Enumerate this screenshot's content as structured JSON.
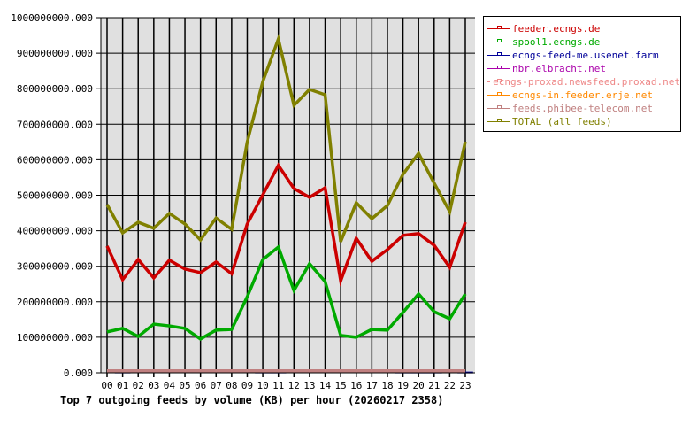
{
  "chart_data": {
    "type": "line",
    "title": "Top 7 outgoing feeds by volume (KB) per hour (20260217 2358)",
    "xlabel": "",
    "ylabel": "",
    "ylim": [
      0,
      1000000000
    ],
    "grid": true,
    "legend_position": "right",
    "y_ticks": [
      "0.000",
      "100000000.000",
      "200000000.000",
      "300000000.000",
      "400000000.000",
      "500000000.000",
      "600000000.000",
      "700000000.000",
      "800000000.000",
      "900000000.000",
      "1000000000.000"
    ],
    "categories": [
      "00",
      "01",
      "02",
      "03",
      "04",
      "05",
      "06",
      "07",
      "08",
      "09",
      "10",
      "11",
      "12",
      "13",
      "14",
      "15",
      "16",
      "17",
      "18",
      "19",
      "20",
      "21",
      "22",
      "23"
    ],
    "series": [
      {
        "name": "feeder.ecngs.de",
        "color": "#cc0000",
        "values": [
          357000000,
          262000000,
          319000000,
          267000000,
          317000000,
          292000000,
          282000000,
          312000000,
          279000000,
          419000000,
          501000000,
          584000000,
          519000000,
          494000000,
          521000000,
          259000000,
          379000000,
          314000000,
          347000000,
          387000000,
          392000000,
          359000000,
          297000000,
          424000000
        ]
      },
      {
        "name": "spool1.ecngs.de",
        "color": "#00aa00",
        "values": [
          115000000,
          125000000,
          102000000,
          137000000,
          132000000,
          125000000,
          95000000,
          120000000,
          122000000,
          214000000,
          319000000,
          354000000,
          232000000,
          307000000,
          257000000,
          105000000,
          100000000,
          122000000,
          120000000,
          170000000,
          222000000,
          172000000,
          152000000,
          222000000
        ]
      },
      {
        "name": "ecngs-feed-me.usenet.farm",
        "color": "#000099",
        "values": [
          0,
          6000000,
          0,
          0,
          0,
          0,
          0,
          0,
          0,
          0,
          6000000,
          6000000,
          0,
          0,
          0,
          0,
          0,
          0,
          0,
          6000000,
          6000000,
          6000000,
          0,
          6000000
        ]
      },
      {
        "name": "nbr.elbracht.net",
        "color": "#aa00aa",
        "values": [
          0,
          0,
          0,
          0,
          0,
          0,
          0,
          0,
          0,
          0,
          0,
          0,
          0,
          0,
          0,
          0,
          0,
          0,
          0,
          0,
          0,
          0,
          0,
          0
        ]
      },
      {
        "name": "ecngs-proxad.newsfeed.proxad.net",
        "color": "#ee8888",
        "values": [
          0,
          0,
          0,
          0,
          0,
          0,
          0,
          0,
          0,
          0,
          0,
          0,
          0,
          0,
          0,
          0,
          0,
          0,
          0,
          0,
          0,
          0,
          0,
          0
        ]
      },
      {
        "name": "ecngs-in.feeder.erje.net",
        "color": "#ff8800",
        "values": [
          0,
          0,
          0,
          0,
          0,
          0,
          0,
          0,
          0,
          0,
          0,
          0,
          0,
          0,
          0,
          0,
          0,
          0,
          0,
          0,
          0,
          0,
          0,
          0
        ]
      },
      {
        "name": "feeds.phibee-telecom.net",
        "color": "#c08080",
        "values": [
          0,
          0,
          0,
          0,
          0,
          0,
          0,
          0,
          0,
          0,
          0,
          0,
          0,
          0,
          0,
          0,
          0,
          0,
          0,
          0,
          0,
          0,
          0,
          0
        ]
      },
      {
        "name": "TOTAL (all feeds)",
        "color": "#808000",
        "values": [
          474000000,
          394000000,
          424000000,
          407000000,
          449000000,
          419000000,
          374000000,
          436000000,
          404000000,
          650000000,
          820000000,
          940000000,
          753000000,
          798000000,
          783000000,
          369000000,
          479000000,
          434000000,
          471000000,
          559000000,
          618000000,
          534000000,
          454000000,
          651000000
        ]
      }
    ]
  },
  "legend": {
    "items": [
      {
        "label": "feeder.ecngs.de",
        "color": "#cc0000"
      },
      {
        "label": "spool1.ecngs.de",
        "color": "#00aa00"
      },
      {
        "label": "ecngs-feed-me.usenet.farm",
        "color": "#000099"
      },
      {
        "label": "nbr.elbracht.net",
        "color": "#aa00aa"
      },
      {
        "label": "ecngs-proxad.newsfeed.proxad.net",
        "color": "#ee8888"
      },
      {
        "label": "ecngs-in.feeder.erje.net",
        "color": "#ff8800"
      },
      {
        "label": "feeds.phibee-telecom.net",
        "color": "#c08080"
      },
      {
        "label": "TOTAL (all feeds)",
        "color": "#808000"
      }
    ]
  },
  "caption": "Top 7 outgoing feeds by volume (KB) per hour (20260217 2358)"
}
